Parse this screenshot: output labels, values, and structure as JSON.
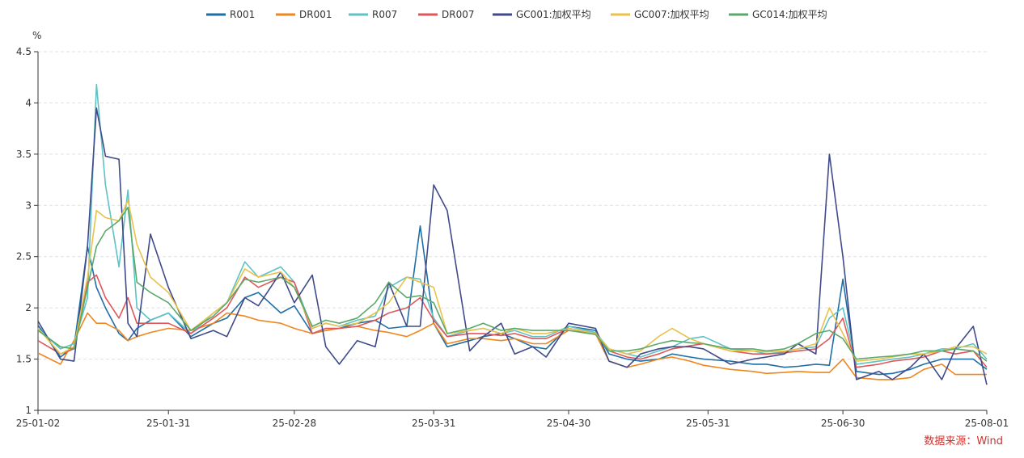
{
  "chart_data": {
    "type": "line",
    "unit_label": "%",
    "ylim": [
      1,
      4.5
    ],
    "yticks": [
      1,
      1.5,
      2,
      2.5,
      3,
      3.5,
      4,
      4.5
    ],
    "ytick_labels": [
      "1",
      "1.5",
      "2",
      "2.5",
      "3",
      "3.5",
      "4",
      "4.5"
    ],
    "xlim": [
      "2025-01-02",
      "2025-08-01"
    ],
    "xticks": [
      "2025-01-02",
      "2025-01-31",
      "2025-02-28",
      "2025-03-31",
      "2025-04-30",
      "2025-05-31",
      "2025-06-30",
      "2025-08-01"
    ],
    "xtick_labels": [
      "25-01-02",
      "25-01-31",
      "25-02-28",
      "25-03-31",
      "25-04-30",
      "25-05-31",
      "25-06-30",
      "25-08-01"
    ],
    "grid": "horizontal-dashed",
    "legend_position": "top-center",
    "dates": [
      "2025-01-02",
      "2025-01-07",
      "2025-01-10",
      "2025-01-13",
      "2025-01-15",
      "2025-01-17",
      "2025-01-20",
      "2025-01-22",
      "2025-01-24",
      "2025-01-27",
      "2025-01-31",
      "2025-02-05",
      "2025-02-10",
      "2025-02-13",
      "2025-02-17",
      "2025-02-20",
      "2025-02-25",
      "2025-02-28",
      "2025-03-04",
      "2025-03-07",
      "2025-03-10",
      "2025-03-14",
      "2025-03-18",
      "2025-03-21",
      "2025-03-25",
      "2025-03-28",
      "2025-03-31",
      "2025-04-03",
      "2025-04-08",
      "2025-04-11",
      "2025-04-15",
      "2025-04-18",
      "2025-04-22",
      "2025-04-25",
      "2025-04-30",
      "2025-05-06",
      "2025-05-09",
      "2025-05-13",
      "2025-05-16",
      "2025-05-20",
      "2025-05-23",
      "2025-05-27",
      "2025-05-30",
      "2025-06-05",
      "2025-06-10",
      "2025-06-13",
      "2025-06-17",
      "2025-06-20",
      "2025-06-24",
      "2025-06-27",
      "2025-06-30",
      "2025-07-03",
      "2025-07-08",
      "2025-07-11",
      "2025-07-15",
      "2025-07-18",
      "2025-07-22",
      "2025-07-25",
      "2025-07-29",
      "2025-08-01"
    ],
    "series": [
      {
        "name": "R001",
        "color": "#1f6fa6",
        "values": [
          1.83,
          1.52,
          1.62,
          2.6,
          2.2,
          2.0,
          1.75,
          1.68,
          1.8,
          1.88,
          1.95,
          1.72,
          1.85,
          1.9,
          2.1,
          2.15,
          1.95,
          2.02,
          1.75,
          1.78,
          1.8,
          1.85,
          1.88,
          1.8,
          1.82,
          2.8,
          1.85,
          1.62,
          1.68,
          1.72,
          1.75,
          1.7,
          1.62,
          1.6,
          1.82,
          1.78,
          1.55,
          1.5,
          1.48,
          1.5,
          1.55,
          1.52,
          1.5,
          1.48,
          1.45,
          1.45,
          1.42,
          1.43,
          1.45,
          1.44,
          2.28,
          1.38,
          1.35,
          1.36,
          1.4,
          1.45,
          1.5,
          1.5,
          1.5,
          1.4
        ]
      },
      {
        "name": "DR001",
        "color": "#f0861e",
        "values": [
          1.56,
          1.45,
          1.68,
          1.95,
          1.85,
          1.85,
          1.78,
          1.68,
          1.72,
          1.76,
          1.8,
          1.78,
          1.85,
          1.95,
          1.92,
          1.88,
          1.85,
          1.8,
          1.75,
          1.78,
          1.8,
          1.82,
          1.78,
          1.76,
          1.72,
          1.78,
          1.85,
          1.65,
          1.7,
          1.7,
          1.68,
          1.7,
          1.65,
          1.65,
          1.78,
          1.75,
          1.48,
          1.42,
          1.45,
          1.5,
          1.52,
          1.48,
          1.44,
          1.4,
          1.38,
          1.36,
          1.37,
          1.38,
          1.37,
          1.37,
          1.5,
          1.32,
          1.3,
          1.3,
          1.32,
          1.4,
          1.45,
          1.35,
          1.35,
          1.35
        ]
      },
      {
        "name": "R007",
        "color": "#5fc2c4",
        "values": [
          1.8,
          1.6,
          1.65,
          2.1,
          4.18,
          3.2,
          2.4,
          3.15,
          2.0,
          1.88,
          1.95,
          1.75,
          1.95,
          2.05,
          2.45,
          2.3,
          2.4,
          2.25,
          1.8,
          1.85,
          1.82,
          1.88,
          1.92,
          2.2,
          2.3,
          2.28,
          1.9,
          1.72,
          1.78,
          1.8,
          1.75,
          1.78,
          1.72,
          1.72,
          1.82,
          1.76,
          1.6,
          1.55,
          1.52,
          1.58,
          1.62,
          1.7,
          1.72,
          1.6,
          1.58,
          1.55,
          1.57,
          1.6,
          1.62,
          1.9,
          2.0,
          1.45,
          1.48,
          1.5,
          1.52,
          1.55,
          1.6,
          1.6,
          1.65,
          1.5
        ]
      },
      {
        "name": "DR007",
        "color": "#e15759",
        "values": [
          1.68,
          1.55,
          1.6,
          2.25,
          2.32,
          2.1,
          1.9,
          2.1,
          1.85,
          1.85,
          1.85,
          1.75,
          1.9,
          2.0,
          2.3,
          2.2,
          2.3,
          2.25,
          1.75,
          1.8,
          1.8,
          1.82,
          1.88,
          1.95,
          2.0,
          2.1,
          1.88,
          1.72,
          1.75,
          1.75,
          1.73,
          1.75,
          1.7,
          1.7,
          1.8,
          1.75,
          1.58,
          1.52,
          1.5,
          1.55,
          1.6,
          1.63,
          1.65,
          1.58,
          1.55,
          1.55,
          1.56,
          1.58,
          1.6,
          1.7,
          1.9,
          1.42,
          1.45,
          1.48,
          1.5,
          1.52,
          1.58,
          1.55,
          1.58,
          1.42
        ]
      },
      {
        "name": "GC001:加权平均",
        "color": "#3f4a8a",
        "values": [
          1.87,
          1.5,
          1.48,
          2.6,
          3.95,
          3.48,
          3.45,
          1.85,
          1.72,
          2.72,
          2.2,
          1.7,
          1.78,
          1.72,
          2.1,
          2.02,
          2.35,
          2.05,
          2.32,
          1.62,
          1.45,
          1.68,
          1.62,
          2.25,
          1.82,
          1.82,
          3.2,
          2.95,
          1.58,
          1.72,
          1.85,
          1.55,
          1.62,
          1.52,
          1.85,
          1.8,
          1.48,
          1.42,
          1.55,
          1.6,
          1.62,
          1.62,
          1.6,
          1.45,
          1.5,
          1.52,
          1.55,
          1.65,
          1.55,
          3.5,
          2.5,
          1.3,
          1.38,
          1.3,
          1.42,
          1.55,
          1.3,
          1.6,
          1.82,
          1.25
        ]
      },
      {
        "name": "GC007:加权平均",
        "color": "#e8c24a",
        "values": [
          1.8,
          1.55,
          1.62,
          2.3,
          2.95,
          2.88,
          2.85,
          3.05,
          2.62,
          2.3,
          2.15,
          1.78,
          1.95,
          2.05,
          2.38,
          2.3,
          2.35,
          2.2,
          1.8,
          1.85,
          1.82,
          1.85,
          1.95,
          2.05,
          2.3,
          2.25,
          2.2,
          1.75,
          1.78,
          1.8,
          1.75,
          1.8,
          1.75,
          1.75,
          1.8,
          1.75,
          1.6,
          1.55,
          1.58,
          1.72,
          1.8,
          1.7,
          1.65,
          1.58,
          1.58,
          1.57,
          1.58,
          1.6,
          1.65,
          2.0,
          1.75,
          1.48,
          1.5,
          1.52,
          1.55,
          1.55,
          1.58,
          1.62,
          1.62,
          1.55
        ]
      },
      {
        "name": "GC014:加权平均",
        "color": "#5ba86b",
        "values": [
          1.78,
          1.62,
          1.6,
          2.2,
          2.6,
          2.75,
          2.85,
          2.98,
          2.25,
          2.15,
          2.05,
          1.78,
          1.92,
          2.05,
          2.28,
          2.25,
          2.3,
          2.2,
          1.82,
          1.88,
          1.85,
          1.9,
          2.05,
          2.25,
          2.1,
          2.12,
          2.05,
          1.75,
          1.8,
          1.85,
          1.78,
          1.8,
          1.78,
          1.78,
          1.78,
          1.74,
          1.58,
          1.58,
          1.6,
          1.65,
          1.68,
          1.66,
          1.65,
          1.6,
          1.6,
          1.58,
          1.6,
          1.65,
          1.75,
          1.78,
          1.7,
          1.5,
          1.52,
          1.53,
          1.55,
          1.58,
          1.58,
          1.6,
          1.58,
          1.48
        ]
      }
    ]
  },
  "source_text": "数据来源：Wind"
}
